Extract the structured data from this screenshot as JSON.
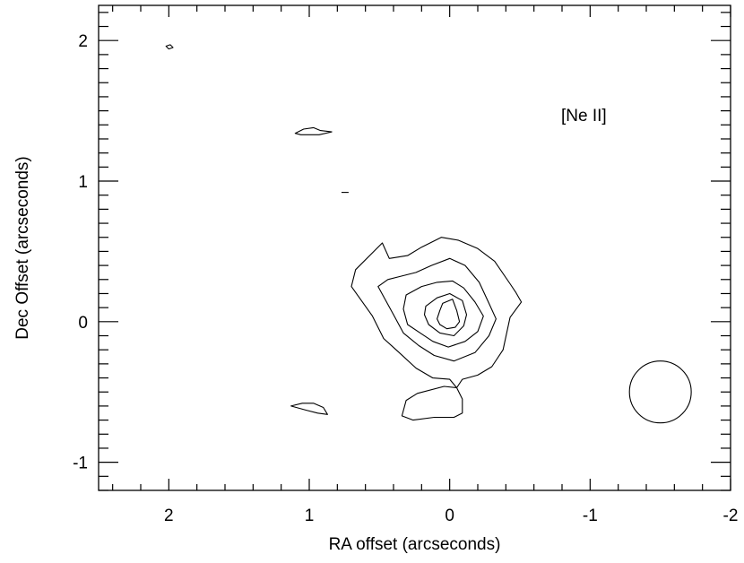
{
  "chart_data": {
    "type": "contour",
    "annotation": "[Ne II]",
    "xlabel": "RA offset (arcseconds)",
    "ylabel": "Dec Offset (arcseconds)",
    "xlim": [
      2.5,
      -2.0
    ],
    "ylim": [
      -1.2,
      2.25
    ],
    "x_ticks": [
      2,
      1,
      0,
      -1,
      -2
    ],
    "y_ticks": [
      -1,
      0,
      1,
      2
    ],
    "x_tick_labels": [
      "2",
      "1",
      "0",
      "-1",
      "-2"
    ],
    "y_tick_labels": [
      "-1",
      "0",
      "1",
      "2"
    ],
    "x_minor_step": 0.2,
    "y_minor_step": 0.1,
    "grid": false,
    "contours": [
      {
        "level": 1,
        "closed": true,
        "points": [
          [
            0.48,
            0.56
          ],
          [
            0.43,
            0.45
          ],
          [
            0.3,
            0.47
          ],
          [
            0.2,
            0.53
          ],
          [
            0.06,
            0.6
          ],
          [
            -0.06,
            0.58
          ],
          [
            -0.2,
            0.52
          ],
          [
            -0.32,
            0.43
          ],
          [
            -0.43,
            0.27
          ],
          [
            -0.47,
            0.21
          ],
          [
            -0.51,
            0.14
          ],
          [
            -0.43,
            0.03
          ],
          [
            -0.38,
            -0.2
          ],
          [
            -0.3,
            -0.32
          ],
          [
            -0.2,
            -0.38
          ],
          [
            -0.09,
            -0.41
          ],
          [
            -0.05,
            -0.47
          ],
          [
            -0.09,
            -0.55
          ],
          [
            -0.09,
            -0.65
          ],
          [
            -0.03,
            -0.68
          ],
          [
            0.11,
            -0.68
          ],
          [
            0.26,
            -0.7
          ],
          [
            0.34,
            -0.67
          ],
          [
            0.31,
            -0.56
          ],
          [
            0.23,
            -0.51
          ],
          [
            0.04,
            -0.46
          ],
          [
            -0.05,
            -0.47
          ],
          [
            0.0,
            -0.41
          ],
          [
            0.12,
            -0.4
          ],
          [
            0.24,
            -0.33
          ],
          [
            0.37,
            -0.21
          ],
          [
            0.47,
            -0.12
          ],
          [
            0.55,
            0.04
          ],
          [
            0.7,
            0.25
          ],
          [
            0.67,
            0.37
          ],
          [
            0.55,
            0.49
          ]
        ]
      },
      {
        "level": 2,
        "closed": true,
        "points": [
          [
            0.36,
            0.32
          ],
          [
            0.24,
            0.35
          ],
          [
            0.13,
            0.4
          ],
          [
            0.0,
            0.45
          ],
          [
            -0.11,
            0.4
          ],
          [
            -0.21,
            0.28
          ],
          [
            -0.28,
            0.13
          ],
          [
            -0.33,
            0.02
          ],
          [
            -0.28,
            -0.1
          ],
          [
            -0.18,
            -0.22
          ],
          [
            -0.03,
            -0.28
          ],
          [
            0.11,
            -0.24
          ],
          [
            0.22,
            -0.17
          ],
          [
            0.33,
            -0.08
          ],
          [
            0.4,
            0.05
          ],
          [
            0.51,
            0.25
          ],
          [
            0.44,
            0.3
          ]
        ]
      },
      {
        "level": 3,
        "closed": true,
        "points": [
          [
            0.31,
            0.19
          ],
          [
            0.2,
            0.25
          ],
          [
            0.09,
            0.28
          ],
          [
            -0.02,
            0.29
          ],
          [
            -0.1,
            0.24
          ],
          [
            -0.18,
            0.14
          ],
          [
            -0.24,
            0.04
          ],
          [
            -0.2,
            -0.07
          ],
          [
            -0.11,
            -0.14
          ],
          [
            0.01,
            -0.18
          ],
          [
            0.12,
            -0.14
          ],
          [
            0.21,
            -0.08
          ],
          [
            0.3,
            -0.02
          ],
          [
            0.33,
            0.09
          ]
        ]
      },
      {
        "level": 4,
        "closed": true,
        "points": [
          [
            0.17,
            0.11
          ],
          [
            0.09,
            0.17
          ],
          [
            0.0,
            0.2
          ],
          [
            -0.09,
            0.15
          ],
          [
            -0.12,
            0.05
          ],
          [
            -0.1,
            -0.03
          ],
          [
            -0.03,
            -0.1
          ],
          [
            0.07,
            -0.08
          ],
          [
            0.15,
            -0.02
          ],
          [
            0.18,
            0.05
          ]
        ]
      },
      {
        "level": 5,
        "closed": true,
        "points": [
          [
            0.05,
            0.13
          ],
          [
            -0.02,
            0.16
          ],
          [
            -0.05,
            0.08
          ],
          [
            -0.07,
            0.0
          ],
          [
            -0.04,
            -0.04
          ],
          [
            0.02,
            -0.05
          ],
          [
            0.07,
            -0.02
          ],
          [
            0.09,
            0.02
          ],
          [
            0.07,
            0.08
          ]
        ]
      },
      {
        "level": 1,
        "closed": true,
        "points": [
          [
            1.1,
            1.34
          ],
          [
            1.04,
            1.37
          ],
          [
            0.97,
            1.38
          ],
          [
            0.92,
            1.36
          ],
          [
            0.84,
            1.35
          ],
          [
            0.93,
            1.33
          ],
          [
            1.0,
            1.33
          ],
          [
            1.06,
            1.33
          ]
        ]
      },
      {
        "level": 1,
        "closed": true,
        "points": [
          [
            1.13,
            -0.6
          ],
          [
            1.05,
            -0.58
          ],
          [
            0.97,
            -0.58
          ],
          [
            0.9,
            -0.61
          ],
          [
            0.87,
            -0.66
          ],
          [
            0.94,
            -0.65
          ],
          [
            1.02,
            -0.63
          ]
        ]
      },
      {
        "level": 1,
        "closed": true,
        "points": [
          [
            2.02,
            1.96
          ],
          [
            1.99,
            1.97
          ],
          [
            1.97,
            1.95
          ],
          [
            2.0,
            1.94
          ]
        ]
      },
      {
        "level": 1,
        "closed": false,
        "points": [
          [
            0.77,
            0.92
          ],
          [
            0.72,
            0.92
          ]
        ]
      }
    ],
    "beam": {
      "center": [
        -1.5,
        -0.5
      ],
      "radius": 0.22
    }
  }
}
